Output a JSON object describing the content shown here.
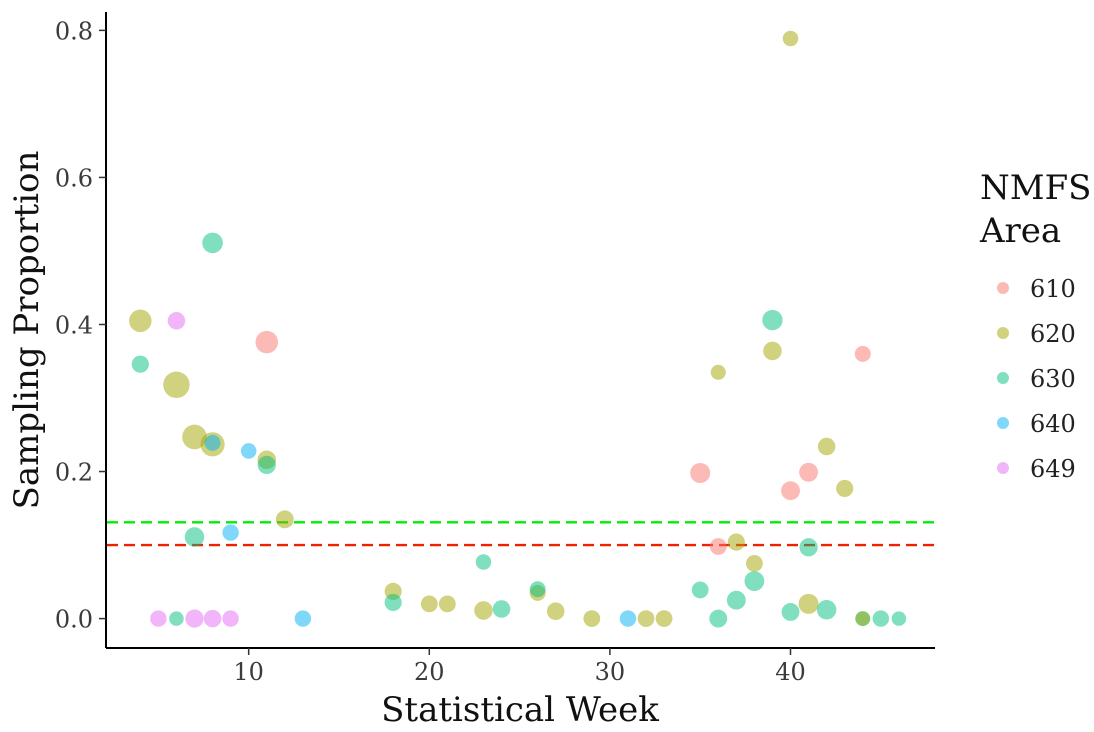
{
  "chart_data": {
    "type": "scatter",
    "xlabel": "Statistical Week",
    "ylabel": "Sampling Proportion",
    "xlim": [
      2.1,
      48
    ],
    "ylim": [
      -0.04,
      0.825
    ],
    "xticks": [
      10,
      20,
      30,
      40
    ],
    "yticks": [
      0.0,
      0.2,
      0.4,
      0.6,
      0.8
    ],
    "ytick_labels": [
      "0.0",
      "0.2",
      "0.4",
      "0.6",
      "0.8"
    ],
    "grid": false,
    "legend": {
      "title_lines": [
        "NMFS",
        "Area"
      ],
      "placement": "right"
    },
    "reference_lines": [
      {
        "y": 0.131,
        "color": "#00ee00",
        "style": "dashed"
      },
      {
        "y": 0.1,
        "color": "#ee2200",
        "style": "dashed"
      }
    ],
    "series": [
      {
        "name": "610",
        "color": "#F8766D",
        "points": [
          {
            "x": 11,
            "y": 0.376,
            "size": 3
          },
          {
            "x": 35,
            "y": 0.198,
            "size": 2
          },
          {
            "x": 36,
            "y": 0.098,
            "size": 1
          },
          {
            "x": 40,
            "y": 0.174,
            "size": 1.6
          },
          {
            "x": 41,
            "y": 0.199,
            "size": 1.6
          },
          {
            "x": 44,
            "y": 0.36,
            "size": 0.8
          }
        ]
      },
      {
        "name": "620",
        "color": "#A3A500",
        "points": [
          {
            "x": 4,
            "y": 0.405,
            "size": 3
          },
          {
            "x": 6,
            "y": 0.318,
            "size": 5
          },
          {
            "x": 7,
            "y": 0.247,
            "size": 4
          },
          {
            "x": 8,
            "y": 0.237,
            "size": 3.8
          },
          {
            "x": 11,
            "y": 0.216,
            "size": 1.5
          },
          {
            "x": 12,
            "y": 0.135,
            "size": 1.3
          },
          {
            "x": 18,
            "y": 0.037,
            "size": 1.1
          },
          {
            "x": 20,
            "y": 0.02,
            "size": 1
          },
          {
            "x": 21,
            "y": 0.02,
            "size": 1
          },
          {
            "x": 23,
            "y": 0.011,
            "size": 1.5
          },
          {
            "x": 26,
            "y": 0.035,
            "size": 0.8
          },
          {
            "x": 27,
            "y": 0.01,
            "size": 1.2
          },
          {
            "x": 29,
            "y": 0.0,
            "size": 1
          },
          {
            "x": 32,
            "y": 0.0,
            "size": 1
          },
          {
            "x": 33,
            "y": 0.0,
            "size": 1
          },
          {
            "x": 36,
            "y": 0.335,
            "size": 0.6
          },
          {
            "x": 37,
            "y": 0.104,
            "size": 1.1
          },
          {
            "x": 38,
            "y": 0.075,
            "size": 1
          },
          {
            "x": 39,
            "y": 0.364,
            "size": 1.5
          },
          {
            "x": 40,
            "y": 0.789,
            "size": 0.7
          },
          {
            "x": 41,
            "y": 0.02,
            "size": 2
          },
          {
            "x": 42,
            "y": 0.234,
            "size": 1.2
          },
          {
            "x": 43,
            "y": 0.177,
            "size": 1.1
          },
          {
            "x": 44,
            "y": 0.0,
            "size": 0.5
          }
        ]
      },
      {
        "name": "630",
        "color": "#00BF7D",
        "points": [
          {
            "x": 4,
            "y": 0.346,
            "size": 1.1
          },
          {
            "x": 6,
            "y": 0.0,
            "size": 0.5
          },
          {
            "x": 7,
            "y": 0.111,
            "size": 1.8
          },
          {
            "x": 8,
            "y": 0.511,
            "size": 2.2
          },
          {
            "x": 11,
            "y": 0.209,
            "size": 1.4
          },
          {
            "x": 18,
            "y": 0.022,
            "size": 1.1
          },
          {
            "x": 23,
            "y": 0.077,
            "size": 0.7
          },
          {
            "x": 24,
            "y": 0.013,
            "size": 1.2
          },
          {
            "x": 26,
            "y": 0.04,
            "size": 0.8
          },
          {
            "x": 35,
            "y": 0.039,
            "size": 1
          },
          {
            "x": 36,
            "y": 0.0,
            "size": 1.3
          },
          {
            "x": 37,
            "y": 0.025,
            "size": 1.6
          },
          {
            "x": 38,
            "y": 0.051,
            "size": 1.9
          },
          {
            "x": 39,
            "y": 0.406,
            "size": 2.1
          },
          {
            "x": 40,
            "y": 0.009,
            "size": 1.3
          },
          {
            "x": 41,
            "y": 0.097,
            "size": 1.4
          },
          {
            "x": 42,
            "y": 0.012,
            "size": 1.8
          },
          {
            "x": 44,
            "y": 0.0,
            "size": 0.6
          },
          {
            "x": 45,
            "y": 0.0,
            "size": 0.9
          },
          {
            "x": 46,
            "y": 0.0,
            "size": 0.5
          }
        ]
      },
      {
        "name": "640",
        "color": "#00B0F6",
        "points": [
          {
            "x": 8,
            "y": 0.239,
            "size": 0.8
          },
          {
            "x": 9,
            "y": 0.117,
            "size": 0.9
          },
          {
            "x": 10,
            "y": 0.228,
            "size": 0.7
          },
          {
            "x": 13,
            "y": 0.0,
            "size": 0.9
          },
          {
            "x": 31,
            "y": 0.0,
            "size": 0.9
          }
        ]
      },
      {
        "name": "649",
        "color": "#E76BF3",
        "points": [
          {
            "x": 5,
            "y": 0.0,
            "size": 0.9
          },
          {
            "x": 6,
            "y": 0.405,
            "size": 1.2
          },
          {
            "x": 7,
            "y": 0.0,
            "size": 1.4
          },
          {
            "x": 8,
            "y": 0.0,
            "size": 1.2
          },
          {
            "x": 9,
            "y": 0.0,
            "size": 0.9
          }
        ]
      }
    ]
  }
}
